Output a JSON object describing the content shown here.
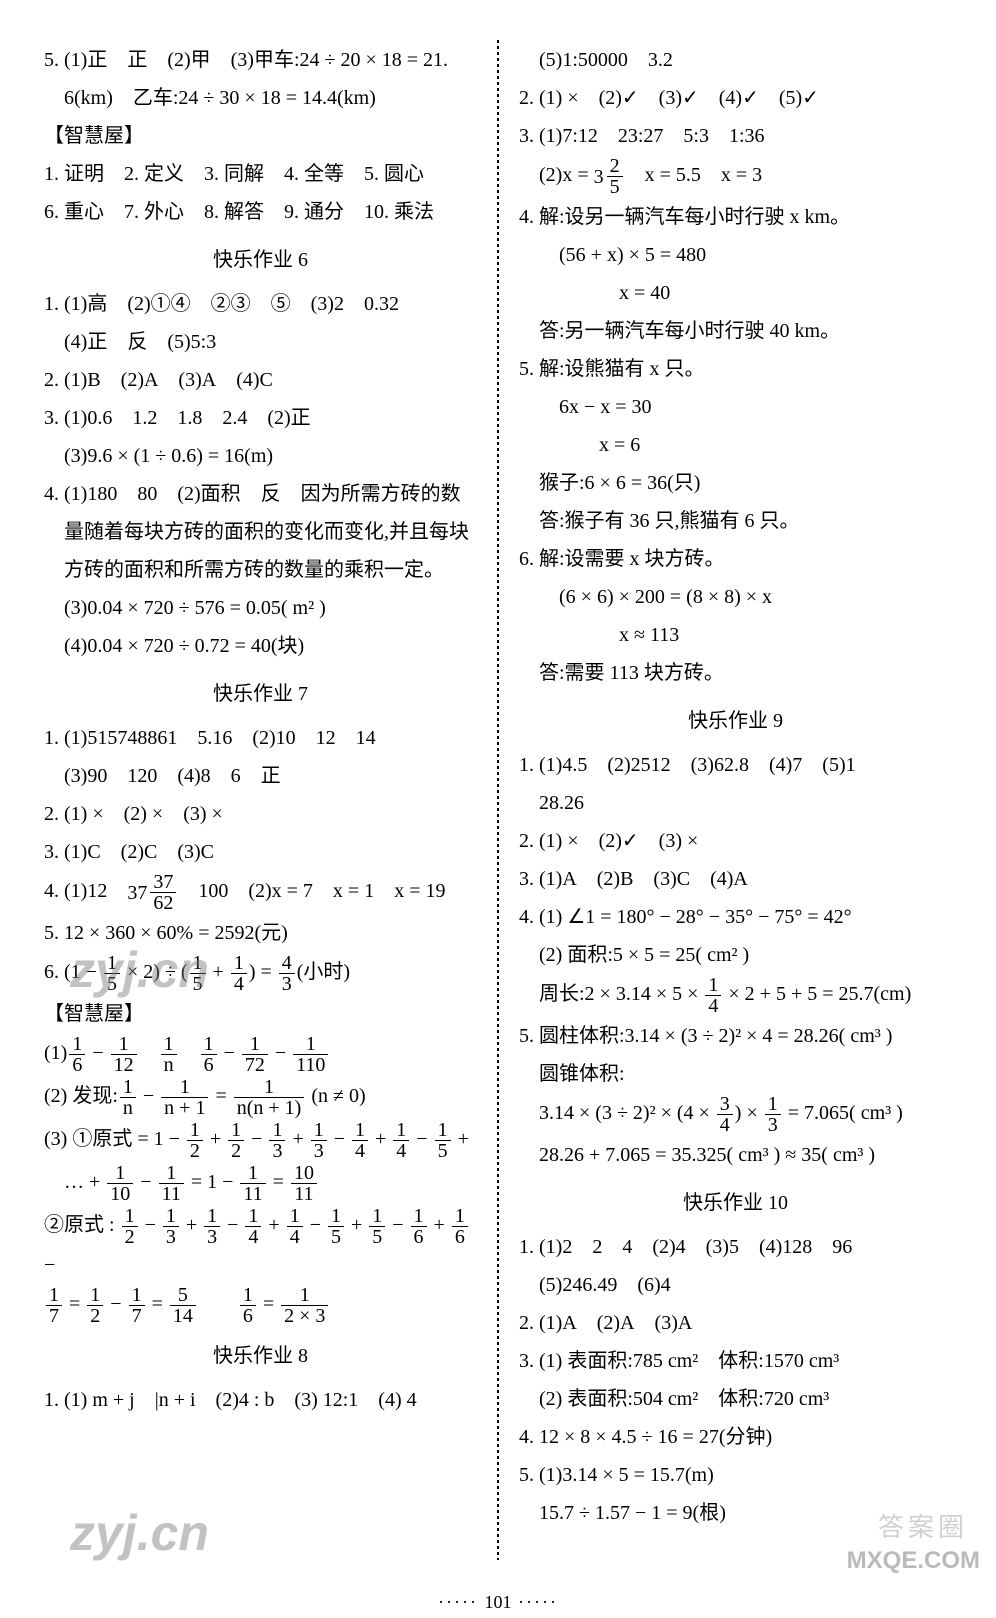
{
  "left": {
    "pre": [
      "5. (1)正 正 (2)甲 (3)甲车:24 ÷ 20 × 18 = 21.",
      " 6(km) 乙车:24 ÷ 30 × 18 = 14.4(km)",
      "【智慧屋】",
      "1. 证明 2. 定义 3. 同解 4. 全等 5. 圆心",
      "6. 重心 7. 外心 8. 解答 9. 通分 10. 乘法"
    ],
    "t6": "快乐作业 6",
    "h6": [
      "1. (1)高 (2)①④ ②③ ⑤ (3)2 0.32",
      " (4)正 反 (5)5:3",
      "2. (1)B (2)A (3)A (4)C",
      "3. (1)0.6 1.2 1.8 2.4 (2)正",
      " (3)9.6 × (1 ÷ 0.6) = 16(m)",
      "4. (1)180 80 (2)面积 反 因为所需方砖的数",
      " 量随着每块方砖的面积的变化而变化,并且每块",
      " 方砖的面积和所需方砖的数量的乘积一定。",
      " (3)0.04 × 720 ÷ 576 = 0.05( m² )",
      " (4)0.04 × 720 ÷ 0.72 = 40(块)"
    ],
    "t7": "快乐作业 7",
    "h7a": [
      "1. (1)515748861 5.16 (2)10 12 14",
      " (3)90 120 (4)8 6 正",
      "2. (1) × (2) × (3) ×",
      "3. (1)C (2)C (3)C"
    ],
    "h7_q4_pre": "4. (1)12 ",
    "h7_q4_mwhole": "37",
    "h7_q4_mn": "37",
    "h7_q4_md": "62",
    "h7_q4_post": " 100 (2)x = 7 x = 1 x = 19",
    "h7_q5": "5. 12 × 360 × 60% = 2592(元)",
    "h7_q6_pre": "6. (1 − ",
    "h7_q6_f1n": "1",
    "h7_q6_f1d": "5",
    "h7_q6_m1": " × 2) ÷ (",
    "h7_q6_f2n": "1",
    "h7_q6_f2d": "5",
    "h7_q6_plus": " + ",
    "h7_q6_f3n": "1",
    "h7_q6_f3d": "4",
    "h7_q6_m2": ") = ",
    "h7_q6_f4n": "4",
    "h7_q6_f4d": "3",
    "h7_q6_post": "(小时)",
    "zhw": "【智慧屋】",
    "z1_pre": "(1)",
    "z1_a_n": "1",
    "z1_a_d": "6",
    "z1_dash": " − ",
    "z1_b_n": "1",
    "z1_b_d": "12",
    "z1_sp": " ",
    "z1_c_n": "1",
    "z1_c_d": "n",
    "z1_sp2": " ",
    "z1_d_n": "1",
    "z1_d_d": "6",
    "z1_dash2": " − ",
    "z1_e_n": "1",
    "z1_e_d": "72",
    "z1_dash3": " − ",
    "z1_f_n": "1",
    "z1_f_d": "110",
    "z2_pre": "(2) 发现:",
    "z2_a_n": "1",
    "z2_a_d": "n",
    "z2_m": " − ",
    "z2_b_n": "1",
    "z2_b_d": "n + 1",
    "z2_eq": " = ",
    "z2_c_n": "1",
    "z2_c_d": "n(n + 1)",
    "z2_post": " (n ≠ 0)",
    "z3_pre": "(3) ①原式 = 1 − ",
    "z3f": [
      "1",
      "2",
      "1",
      "2",
      "1",
      "3",
      "1",
      "3",
      "1",
      "4",
      "1",
      "4",
      "1",
      "5"
    ],
    "z3_t": " … + ",
    "z3g": [
      "1",
      "10",
      "1",
      "11"
    ],
    "z3_eq1": " = 1 − ",
    "z3h": [
      "1",
      "11"
    ],
    "z3_eq2": " = ",
    "z3i": [
      "10",
      "11"
    ],
    "z4_pre": "②原式 : ",
    "z4f": [
      "1",
      "2",
      "1",
      "3",
      "1",
      "3",
      "1",
      "4",
      "1",
      "4",
      "1",
      "5",
      "1",
      "5",
      "1",
      "6",
      "1",
      "6"
    ],
    "z4_m": " − ",
    "z4_l2a": [
      "1",
      "7"
    ],
    "z4_eq": " = ",
    "z4_l2b": [
      "1",
      "2"
    ],
    "z4_m2": " − ",
    "z4_l2c": [
      "1",
      "7"
    ],
    "z4_eq2": " = ",
    "z4_l2d": [
      "5",
      "14"
    ],
    "z4_sp": "  ",
    "z4_l2e": [
      "1",
      "6"
    ],
    "z4_eq3": " = ",
    "z4_l2f": [
      "1",
      "2 × 3"
    ],
    "t8": "快乐作业 8",
    "h8_1": "1. (1) m + j |n + i (2)4 : b (3) 12:1 (4) 4"
  },
  "right": {
    "pre": [
      " (5)1:50000 3.2",
      "2. (1) × (2)✓ (3)✓ (4)✓ (5)✓",
      "3. (1)7:12 23:27 5:3 1:36"
    ],
    "q3_2_pre": " (2)x = ",
    "q3_2_mw": "3",
    "q3_2_mn": "2",
    "q3_2_md": "5",
    "q3_2_post": " x = 5.5 x = 3",
    "mid": [
      "4. 解:设另一辆汽车每小时行驶 x km。",
      "  (56 + x) × 5 = 480",
      "     x = 40",
      " 答:另一辆汽车每小时行驶 40 km。",
      "5. 解:设熊猫有 x 只。",
      "  6x − x = 30",
      "    x = 6",
      " 猴子:6 × 6 = 36(只)",
      " 答:猴子有 36 只,熊猫有 6 只。",
      "6. 解:设需要 x 块方砖。",
      "  (6 × 6) × 200 = (8 × 8) × x",
      "     x ≈ 113",
      " 答:需要 113 块方砖。"
    ],
    "t9": "快乐作业 9",
    "h9a": [
      "1. (1)4.5 (2)2512 (3)62.8 (4)7 (5)1",
      " 28.26",
      "2. (1) × (2)✓ (3) ×",
      "3. (1)A (2)B (3)C (4)A",
      "4. (1) ∠1 = 180° − 28° − 35° − 75° = 42°",
      " (2) 面积:5 × 5 = 25( cm² )"
    ],
    "h9_peri_pre": " 周长:2 × 3.14 × 5 × ",
    "h9_pf": [
      "1",
      "4"
    ],
    "h9_peri_post": " × 2 + 5 + 5 = 25.7(cm)",
    "h9_5a": "5. 圆柱体积:3.14 × (3 ÷ 2)² × 4 = 28.26( cm³ )",
    "h9_5b": " 圆锥体积:",
    "h9_5c_pre": " 3.14 × (3 ÷ 2)² × (4 × ",
    "h9_5c_f1": [
      "3",
      "4"
    ],
    "h9_5c_m": ") × ",
    "h9_5c_f2": [
      "1",
      "3"
    ],
    "h9_5c_post": " = 7.065( cm³ )",
    "h9_5d": " 28.26 + 7.065 = 35.325( cm³ ) ≈ 35( cm³ )",
    "t10": "快乐作业 10",
    "h10": [
      "1. (1)2 2 4 (2)4 (3)5 (4)128 96",
      " (5)246.49 (6)4",
      "2. (1)A (2)A (3)A",
      "3. (1) 表面积:785 cm² 体积:1570 cm³",
      " (2) 表面积:504 cm² 体积:720 cm³",
      "4. 12 × 8 × 4.5 ÷ 16 = 27(分钟)",
      "5. (1)3.14 × 5 = 15.7(m)",
      " 15.7 ÷ 1.57 − 1 = 9(根)"
    ]
  },
  "wm": "zyj.cn",
  "pagenum": "101",
  "mxq": "MXQE.COM",
  "dak": "答案圈"
}
